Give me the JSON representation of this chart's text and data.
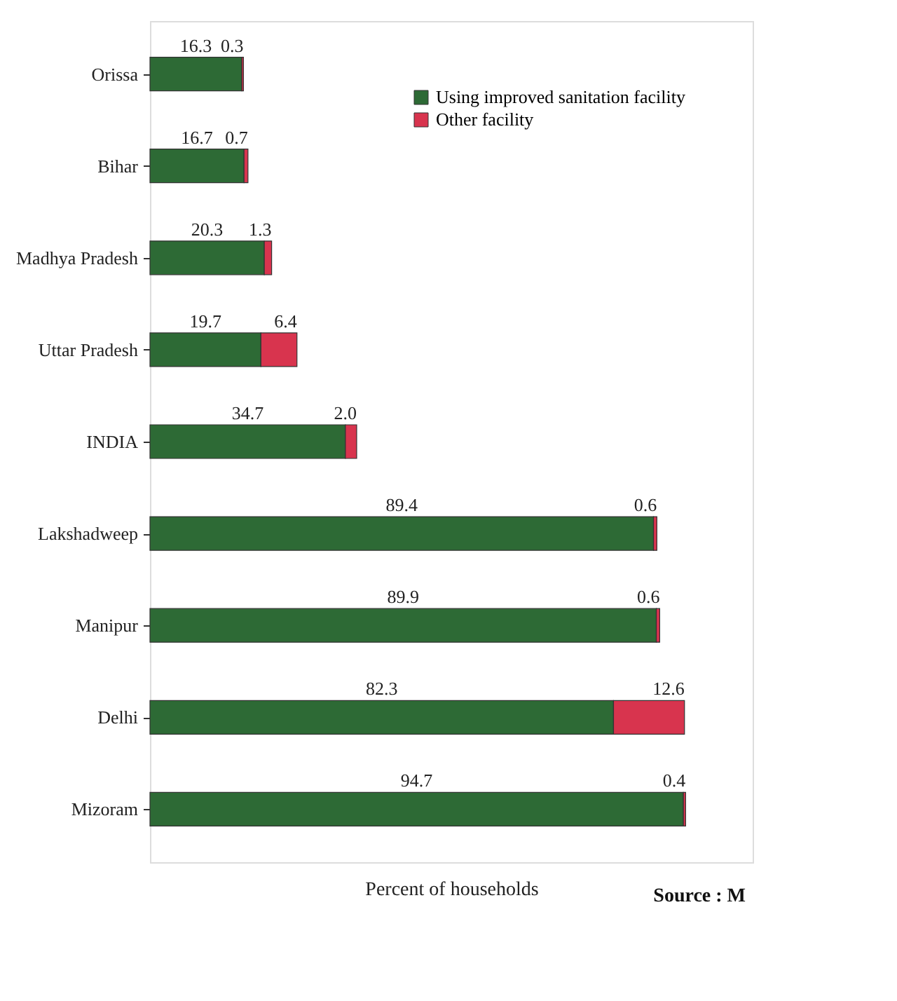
{
  "chart_data": {
    "type": "bar",
    "orientation": "horizontal",
    "stacked": true,
    "categories": [
      "Orissa",
      "Bihar",
      "Madhya Pradesh",
      "Uttar Pradesh",
      "INDIA",
      "Lakshadweep",
      "Manipur",
      "Delhi",
      "Mizoram"
    ],
    "series": [
      {
        "name": "Using improved sanitation facility",
        "color": "#2d6a35",
        "values": [
          16.3,
          16.7,
          20.3,
          19.7,
          34.7,
          89.4,
          89.9,
          82.3,
          94.7
        ],
        "value_labels": [
          "16.3",
          "16.7",
          "20.3",
          "19.7",
          "34.7",
          "89.4",
          "89.9",
          "82.3",
          "94.7"
        ]
      },
      {
        "name": "Other facility",
        "color": "#d8344e",
        "values": [
          0.3,
          0.7,
          1.3,
          6.4,
          2.0,
          0.6,
          0.6,
          12.6,
          0.4
        ],
        "value_labels": [
          "0.3",
          "0.7",
          "1.3",
          "6.4",
          "2.0",
          "0.6",
          "0.6",
          "12.6",
          "0.4"
        ]
      }
    ],
    "xlabel": "Percent of households",
    "xlim": [
      0,
      107
    ],
    "tick_labels": "y",
    "legend": "top right",
    "grid": false,
    "annotations": [
      "Source : M"
    ]
  }
}
